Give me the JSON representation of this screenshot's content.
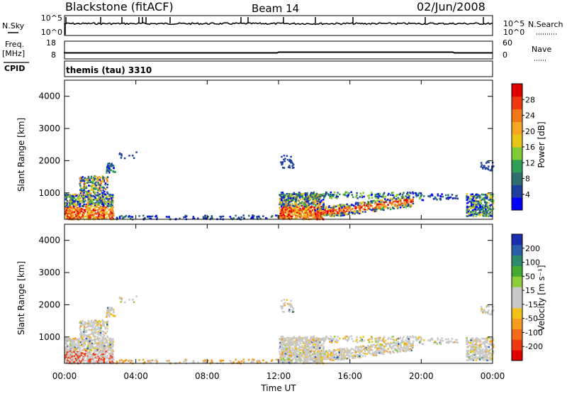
{
  "header": {
    "station": "Blackstone (fitACF)",
    "beam": "Beam 14",
    "date": "02/Jun/2008"
  },
  "nsky_panel": {
    "left_label": "N.Sky",
    "right_label": "N.Search",
    "left_ticks": [
      "10^5",
      "10^0"
    ],
    "right_ticks": [
      "10^5",
      "10^0"
    ]
  },
  "freq_panel": {
    "left_label_1": "Freq.",
    "left_label_2": "[MHz]",
    "right_label": "Nave",
    "left_ticks": [
      "18",
      "8"
    ],
    "right_ticks": [
      "60",
      "0"
    ]
  },
  "cpid_panel": {
    "label": "CPID",
    "program": "themis (tau) 3310"
  },
  "x_axis": {
    "ticks": [
      "00:00",
      "04:00",
      "08:00",
      "12:00",
      "16:00",
      "20:00",
      "00:00"
    ],
    "label": "Time UT"
  },
  "power_panel": {
    "ylabel": "Slant Range [km]",
    "yticks": [
      "1000",
      "2000",
      "3000",
      "4000"
    ],
    "colorbar_label": "Power [dB]",
    "colorbar_ticks": [
      "4",
      "8",
      "12",
      "16",
      "20",
      "24",
      "28"
    ],
    "colorbar_colors": [
      "#0000ff",
      "#1e3fa0",
      "#2e6e6e",
      "#2f9e57",
      "#7fcc33",
      "#e8c619",
      "#f5a623",
      "#f07818",
      "#ee3a12",
      "#e00000"
    ]
  },
  "velocity_panel": {
    "ylabel": "Slant Range [km]",
    "yticks": [
      "1000",
      "2000",
      "3000",
      "4000"
    ],
    "colorbar_label": "Velocity [m s⁻¹]",
    "colorbar_ticks": [
      "200",
      "100",
      "50",
      "15",
      "-15",
      "-50",
      "-100",
      "-200"
    ],
    "colorbar_colors": [
      "#1a2fb0",
      "#2a5ea8",
      "#2e8a6a",
      "#44aa33",
      "#8fcc3a",
      "#c8c8c8",
      "#c8c8c8",
      "#f2c21a",
      "#f59b20",
      "#f26b18",
      "#ee3a12",
      "#e00000"
    ]
  },
  "chart_data": {
    "type": "heatmap",
    "x_range_hours": [
      0,
      24
    ],
    "y_range_km": [
      180,
      4500
    ],
    "panels": [
      "N.Sky / N.Search",
      "Freq. / Nave",
      "CPID",
      "Power",
      "Velocity"
    ],
    "freq_mhz_approx": 10.4,
    "nave_approx": 22,
    "power_range_db": [
      0,
      30
    ],
    "velocity_range": [
      -200,
      200
    ],
    "echo_regions": [
      {
        "t_start": 0.0,
        "t_end": 2.8,
        "range_start": 180,
        "range_end": 1600,
        "peak_power_db": 28
      },
      {
        "t_start": 12.0,
        "t_end": 19.5,
        "range_start": 250,
        "range_end": 1000,
        "peak_power_db": 28
      },
      {
        "t_start": 22.5,
        "t_end": 24.0,
        "range_start": 250,
        "range_end": 1000,
        "peak_power_db": 14
      }
    ]
  }
}
